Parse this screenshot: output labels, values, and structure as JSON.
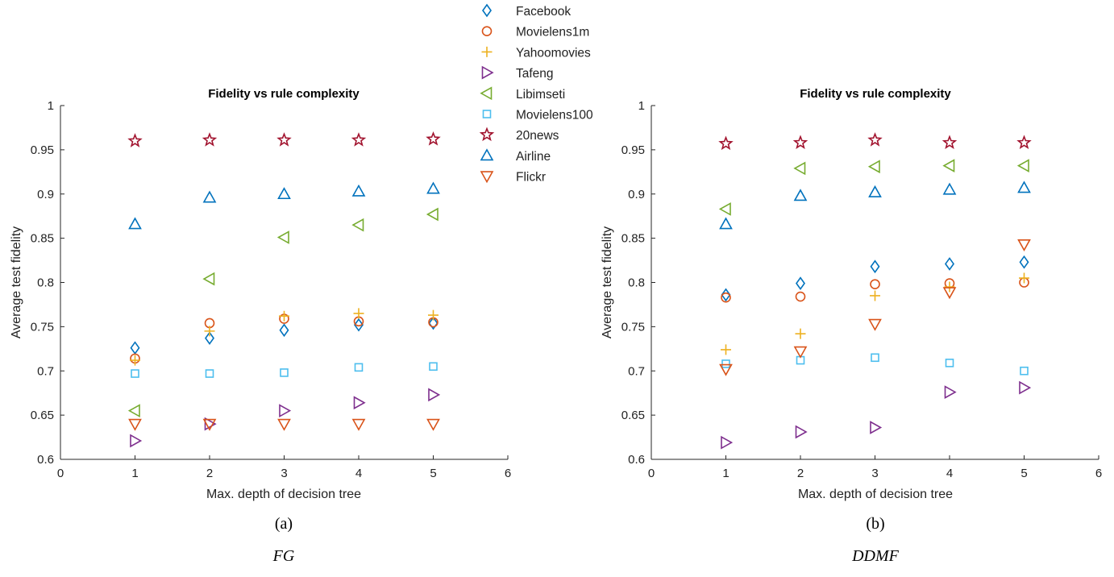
{
  "chart_data": [
    {
      "type": "scatter",
      "title": "Fidelity vs rule complexity",
      "xlabel": "Max. depth of decision tree",
      "ylabel": "Average test fidelity",
      "xlim": [
        0,
        6
      ],
      "ylim": [
        0.6,
        1
      ],
      "xticks": [
        "0",
        "1",
        "2",
        "3",
        "4",
        "5",
        "6"
      ],
      "yticks": [
        "0.6",
        "0.65",
        "0.7",
        "0.75",
        "0.8",
        "0.85",
        "0.9",
        "0.95",
        "1"
      ],
      "caption": "(a)",
      "subcaption": "FG",
      "x": [
        1,
        2,
        3,
        4,
        5
      ],
      "series": [
        {
          "name": "Facebook",
          "marker": "diamond",
          "color": "#0072BD",
          "values": [
            0.726,
            0.737,
            0.746,
            0.752,
            0.754
          ]
        },
        {
          "name": "Movielens1m",
          "marker": "circle",
          "color": "#D95319",
          "values": [
            0.714,
            0.754,
            0.759,
            0.756,
            0.755
          ]
        },
        {
          "name": "Yahoomovies",
          "marker": "plus",
          "color": "#EDB120",
          "values": [
            0.712,
            0.745,
            0.762,
            0.765,
            0.763
          ]
        },
        {
          "name": "Tafeng",
          "marker": "triangle-right",
          "color": "#7E2F8E",
          "values": [
            0.621,
            0.64,
            0.655,
            0.664,
            0.673
          ]
        },
        {
          "name": "Libimseti",
          "marker": "triangle-left",
          "color": "#77AC30",
          "values": [
            0.655,
            0.804,
            0.851,
            0.865,
            0.877
          ]
        },
        {
          "name": "Movielens100",
          "marker": "square",
          "color": "#4DBEEE",
          "values": [
            0.697,
            0.697,
            0.698,
            0.704,
            0.705
          ]
        },
        {
          "name": "20news",
          "marker": "star",
          "color": "#A2142F",
          "values": [
            0.96,
            0.961,
            0.961,
            0.961,
            0.962
          ]
        },
        {
          "name": "Airline",
          "marker": "triangle-up",
          "color": "#0072BD",
          "values": [
            0.866,
            0.896,
            0.9,
            0.903,
            0.906
          ]
        },
        {
          "name": "Flickr",
          "marker": "triangle-down",
          "color": "#D95319",
          "values": [
            0.64,
            0.64,
            0.64,
            0.64,
            0.64
          ]
        }
      ]
    },
    {
      "type": "scatter",
      "title": "Fidelity vs rule complexity",
      "xlabel": "Max. depth of decision tree",
      "ylabel": "Average test fidelity",
      "xlim": [
        0,
        6
      ],
      "ylim": [
        0.6,
        1
      ],
      "xticks": [
        "0",
        "1",
        "2",
        "3",
        "4",
        "5",
        "6"
      ],
      "yticks": [
        "0.6",
        "0.65",
        "0.7",
        "0.75",
        "0.8",
        "0.85",
        "0.9",
        "0.95",
        "1"
      ],
      "caption": "(b)",
      "subcaption": "DDMF",
      "x": [
        1,
        2,
        3,
        4,
        5
      ],
      "series": [
        {
          "name": "Facebook",
          "marker": "diamond",
          "color": "#0072BD",
          "values": [
            0.786,
            0.799,
            0.818,
            0.821,
            0.823
          ]
        },
        {
          "name": "Movielens1m",
          "marker": "circle",
          "color": "#D95319",
          "values": [
            0.783,
            0.784,
            0.798,
            0.799,
            0.8
          ]
        },
        {
          "name": "Yahoomovies",
          "marker": "plus",
          "color": "#EDB120",
          "values": [
            0.724,
            0.742,
            0.785,
            0.795,
            0.805
          ]
        },
        {
          "name": "Tafeng",
          "marker": "triangle-right",
          "color": "#7E2F8E",
          "values": [
            0.619,
            0.631,
            0.636,
            0.676,
            0.681
          ]
        },
        {
          "name": "Libimseti",
          "marker": "triangle-left",
          "color": "#77AC30",
          "values": [
            0.883,
            0.929,
            0.931,
            0.932,
            0.932
          ]
        },
        {
          "name": "Movielens100",
          "marker": "square",
          "color": "#4DBEEE",
          "values": [
            0.708,
            0.712,
            0.715,
            0.709,
            0.7
          ]
        },
        {
          "name": "20news",
          "marker": "star",
          "color": "#A2142F",
          "values": [
            0.957,
            0.958,
            0.961,
            0.958,
            0.958
          ]
        },
        {
          "name": "Airline",
          "marker": "triangle-up",
          "color": "#0072BD",
          "values": [
            0.866,
            0.898,
            0.902,
            0.905,
            0.907
          ]
        },
        {
          "name": "Flickr",
          "marker": "triangle-down",
          "color": "#D95319",
          "values": [
            0.702,
            0.722,
            0.753,
            0.789,
            0.843
          ]
        }
      ]
    }
  ],
  "legend": {
    "position": "top-center",
    "entries": [
      {
        "name": "Facebook",
        "marker": "diamond",
        "color": "#0072BD"
      },
      {
        "name": "Movielens1m",
        "marker": "circle",
        "color": "#D95319"
      },
      {
        "name": "Yahoomovies",
        "marker": "plus",
        "color": "#EDB120"
      },
      {
        "name": "Tafeng",
        "marker": "triangle-right",
        "color": "#7E2F8E"
      },
      {
        "name": "Libimseti",
        "marker": "triangle-left",
        "color": "#77AC30"
      },
      {
        "name": "Movielens100",
        "marker": "square",
        "color": "#4DBEEE"
      },
      {
        "name": "20news",
        "marker": "star",
        "color": "#A2142F"
      },
      {
        "name": "Airline",
        "marker": "triangle-up",
        "color": "#0072BD"
      },
      {
        "name": "Flickr",
        "marker": "triangle-down",
        "color": "#D95319"
      }
    ]
  }
}
